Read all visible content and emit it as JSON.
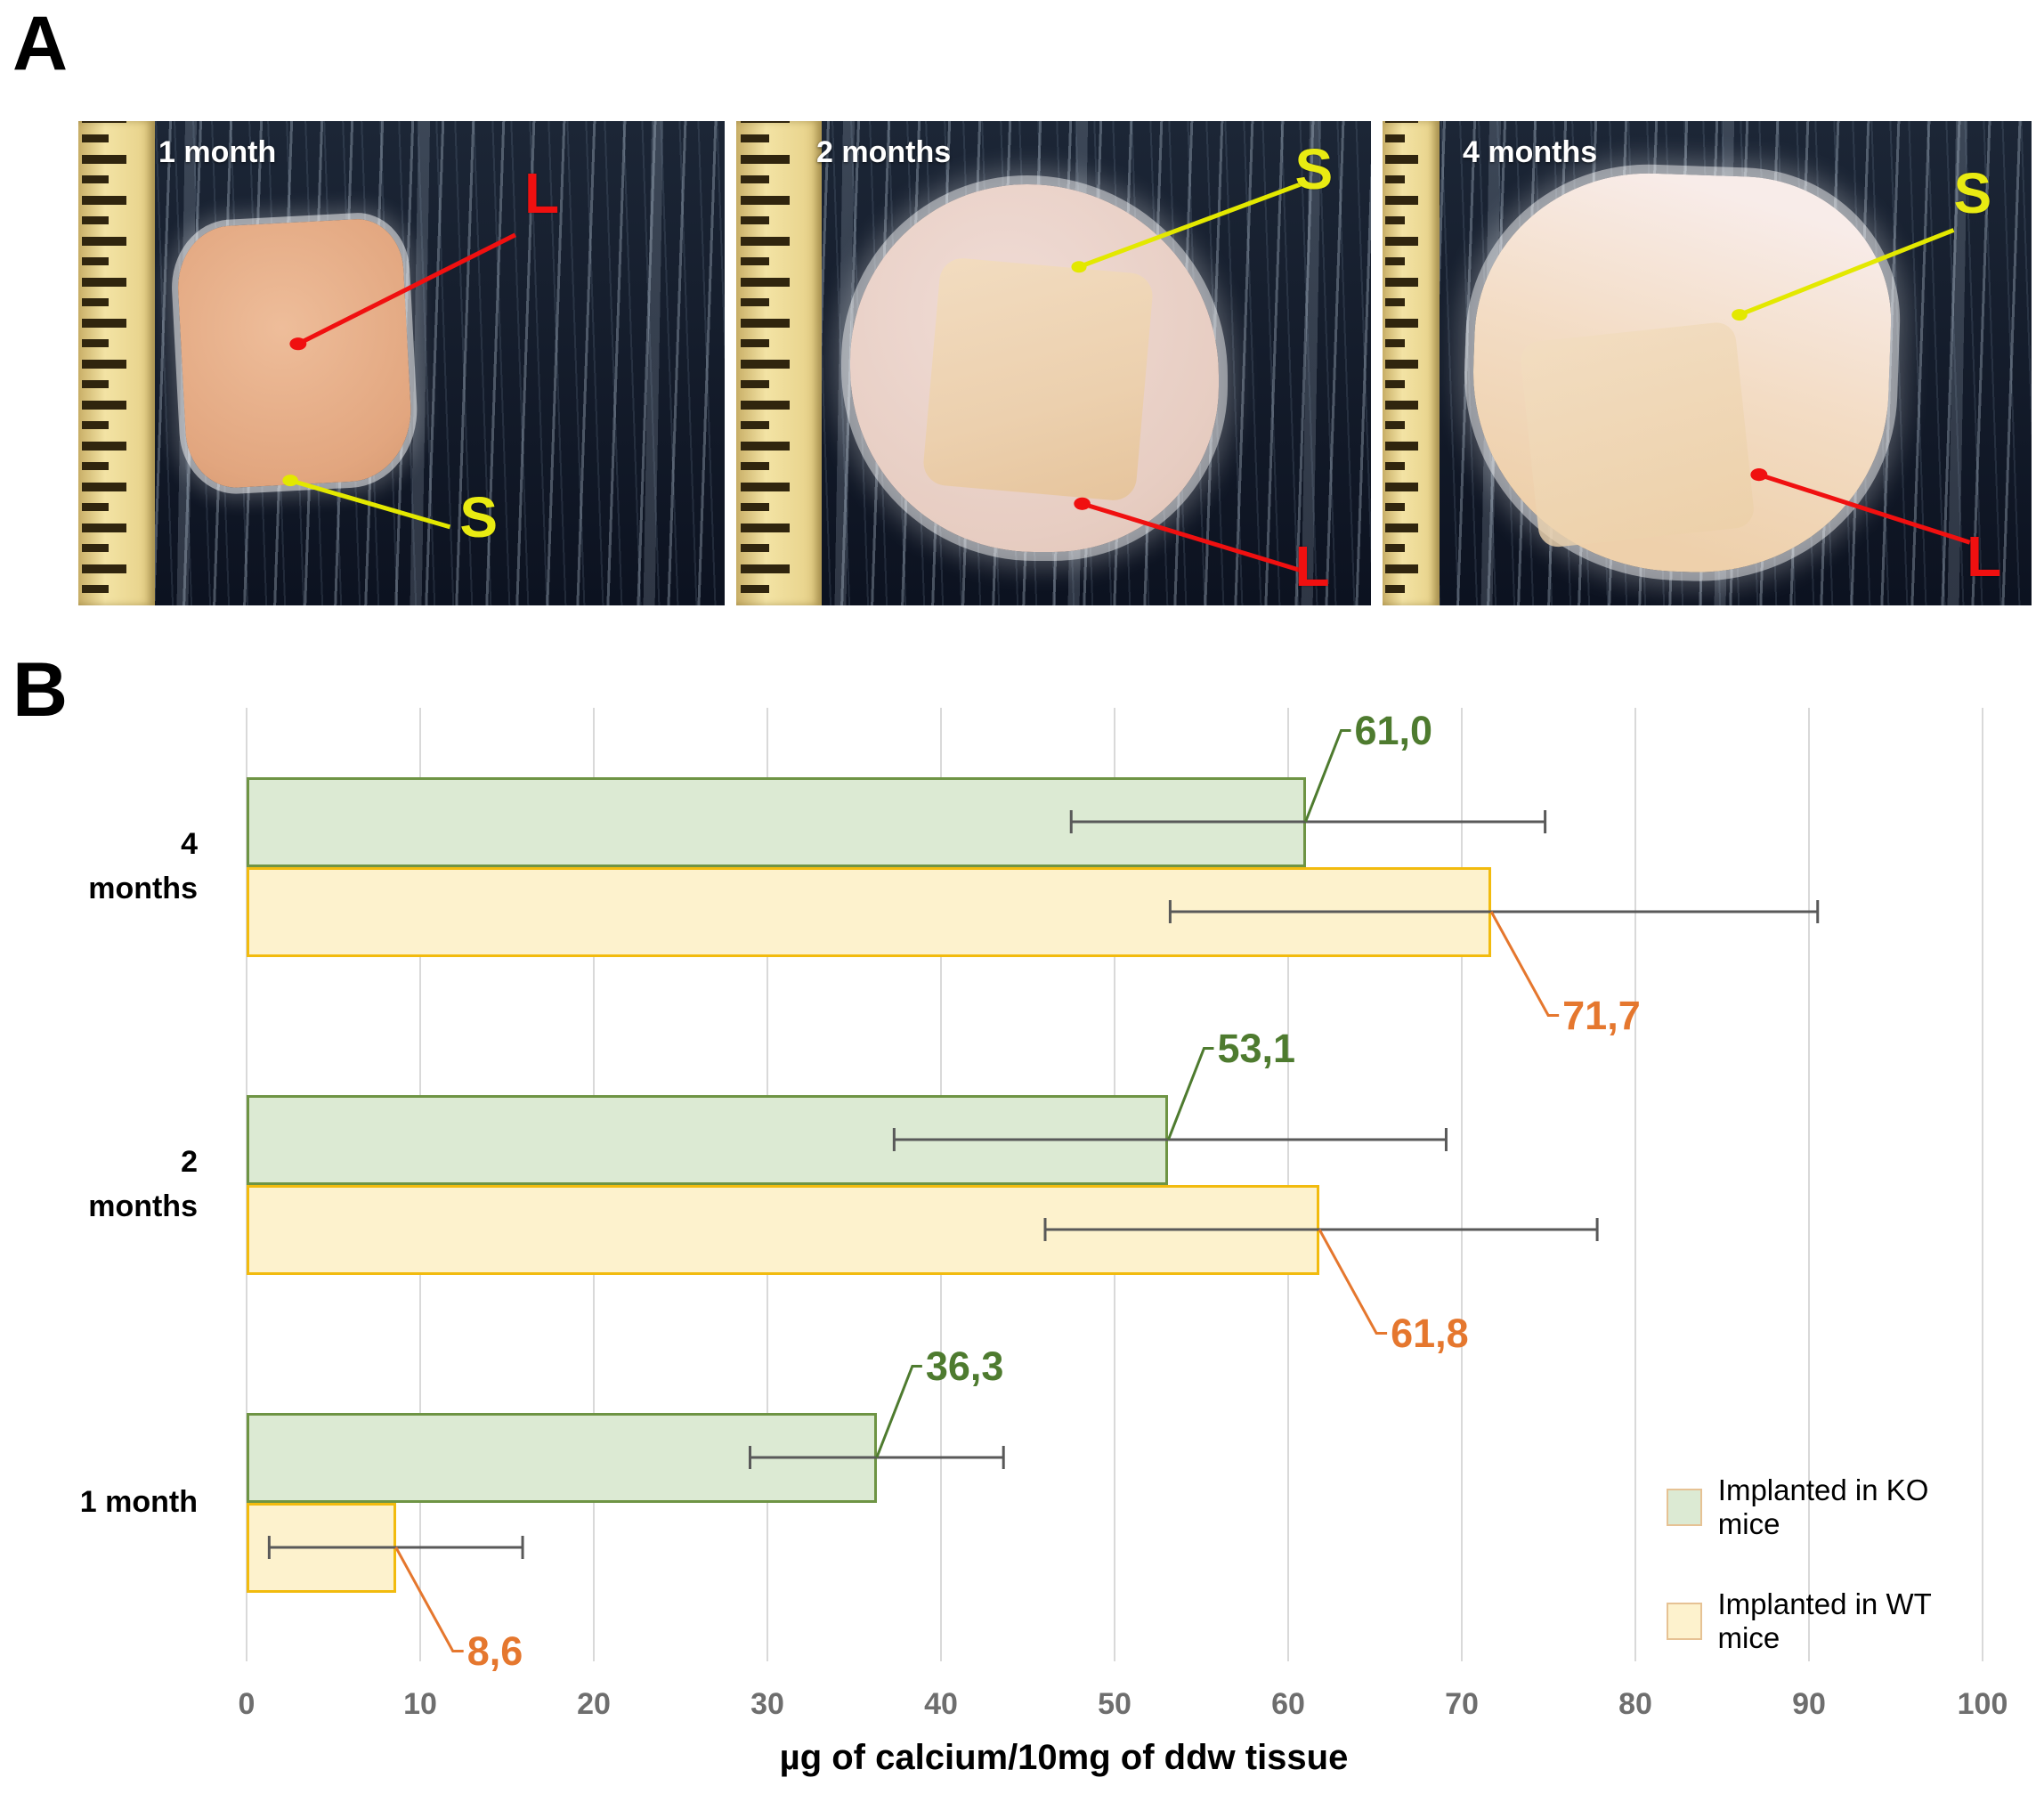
{
  "panels": {
    "a_label": "A",
    "b_label": "B"
  },
  "photos": [
    {
      "time_label": "1 month",
      "l_label": "L",
      "s_label": "S"
    },
    {
      "time_label": "2 months",
      "l_label": "L",
      "s_label": "S"
    },
    {
      "time_label": "4 months",
      "l_label": "L",
      "s_label": "S"
    }
  ],
  "chart_data": {
    "type": "bar",
    "orientation": "horizontal",
    "title": "",
    "xlabel": "µg of calcium/10mg of ddw tissue",
    "xlim": [
      0,
      100
    ],
    "x_ticks": [
      0,
      10,
      20,
      30,
      40,
      50,
      60,
      70,
      80,
      90,
      100
    ],
    "grid": "vertical",
    "categories": [
      "4 months",
      "2 months",
      "1 month"
    ],
    "category_lines": [
      [
        "4",
        "months"
      ],
      [
        "2",
        "months"
      ],
      [
        "1 month"
      ]
    ],
    "series": [
      {
        "name": "Implanted in KO mice",
        "fill": "#dcead3",
        "border": "#6e9444",
        "label_color": "#4e7b2f",
        "label_side": "above",
        "values": [
          61.0,
          53.1,
          36.3
        ],
        "value_labels": [
          "61,0",
          "53,1",
          "36,3"
        ],
        "error_minus": [
          13.5,
          15.8,
          7.3
        ],
        "error_plus": [
          13.8,
          16.0,
          7.3
        ]
      },
      {
        "name": "Implanted in WT mice",
        "fill": "#fdf2cd",
        "border": "#f2bb0e",
        "label_color": "#e5772e",
        "label_side": "below",
        "values": [
          71.7,
          61.8,
          8.6
        ],
        "value_labels": [
          "71,7",
          "61,8",
          "8,6"
        ],
        "error_minus": [
          18.5,
          15.8,
          7.3
        ],
        "error_plus": [
          18.8,
          16.0,
          7.3
        ]
      }
    ],
    "legend": {
      "items": [
        "Implanted in KO mice",
        "Implanted in WT mice"
      ],
      "position": "inside-right-bottom"
    }
  },
  "colors": {
    "error_bar": "#595959",
    "gridline": "#d9d9d9",
    "tick_label": "#6e6e6e",
    "l_marker": "#f01010",
    "s_marker": "#e9eb12"
  }
}
